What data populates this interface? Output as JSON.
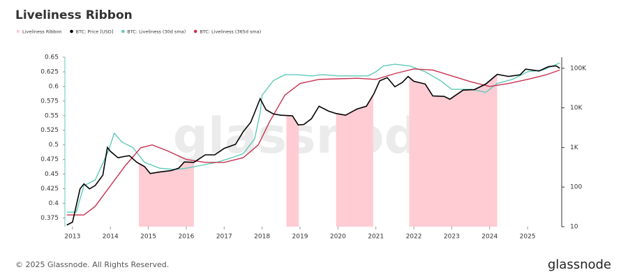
{
  "chart_data": {
    "type": "line",
    "title": "Liveliness Ribbon",
    "watermark": "glassnode",
    "footer": "© 2025 Glassnode. All Rights Reserved.",
    "logo": "glassnode",
    "xlim": [
      2012.8,
      2025.9
    ],
    "xticks": [
      2013,
      2014,
      2015,
      2016,
      2017,
      2018,
      2019,
      2020,
      2021,
      2022,
      2023,
      2024,
      2025
    ],
    "ylim": [
      0.36,
      0.65
    ],
    "yticks": [
      0.375,
      0.4,
      0.425,
      0.45,
      0.475,
      0.5,
      0.525,
      0.55,
      0.575,
      0.6,
      0.625,
      0.65
    ],
    "y2lim": [
      10,
      190000
    ],
    "y2scale": "log",
    "y2ticks": [
      10,
      100,
      {
        "value": 1000,
        "label": "1K"
      },
      {
        "value": 10000,
        "label": "10K"
      },
      {
        "value": 100000,
        "label": "100K"
      }
    ],
    "series": [
      {
        "name": "Liveliness Ribbon",
        "color": "#ffccd4",
        "spans": [
          [
            2014.75,
            2016.2
          ],
          [
            2018.64,
            2018.97
          ],
          [
            2019.95,
            2020.93
          ],
          [
            2021.88,
            2024.2
          ]
        ]
      },
      {
        "name": "BTC: Price [USD]",
        "color": "#000000",
        "axis": "y2",
        "x": [
          2012.85,
          2013.0,
          2013.2,
          2013.3,
          2013.45,
          2013.6,
          2013.8,
          2013.92,
          2014.0,
          2014.2,
          2014.4,
          2014.5,
          2014.7,
          2014.9,
          2015.05,
          2015.3,
          2015.6,
          2015.8,
          2015.95,
          2016.2,
          2016.5,
          2016.75,
          2017.0,
          2017.3,
          2017.5,
          2017.7,
          2017.95,
          2018.1,
          2018.3,
          2018.5,
          2018.8,
          2018.95,
          2019.1,
          2019.3,
          2019.5,
          2019.75,
          2019.95,
          2020.2,
          2020.5,
          2020.75,
          2020.95,
          2021.1,
          2021.3,
          2021.5,
          2021.7,
          2021.85,
          2022.0,
          2022.3,
          2022.5,
          2022.8,
          2022.95,
          2023.3,
          2023.6,
          2023.9,
          2024.2,
          2024.5,
          2024.8,
          2024.95,
          2025.3,
          2025.55,
          2025.75,
          2025.85
        ],
        "values": [
          11,
          13,
          90,
          120,
          90,
          110,
          200,
          1000,
          800,
          550,
          600,
          620,
          420,
          330,
          220,
          240,
          260,
          300,
          430,
          420,
          650,
          650,
          950,
          1200,
          2500,
          4300,
          17000,
          9000,
          7000,
          6500,
          6300,
          3700,
          3800,
          5300,
          11000,
          8300,
          7200,
          6500,
          9300,
          11000,
          23000,
          48000,
          58000,
          34000,
          44000,
          62000,
          47000,
          40000,
          20000,
          19500,
          16500,
          28000,
          29000,
          40000,
          70000,
          62000,
          68000,
          95000,
          85000,
          110000,
          115000,
          100000
        ]
      },
      {
        "name": "BTC: Liveliness (30d sma)",
        "color": "#5fc9b8",
        "x": [
          2012.85,
          2013.1,
          2013.3,
          2013.6,
          2013.95,
          2014.1,
          2014.3,
          2014.6,
          2014.9,
          2015.3,
          2015.7,
          2016.0,
          2016.4,
          2016.8,
          2017.2,
          2017.5,
          2017.8,
          2017.95,
          2018.0,
          2018.3,
          2018.6,
          2018.9,
          2019.3,
          2019.6,
          2020.0,
          2020.4,
          2020.8,
          2021.0,
          2021.2,
          2021.5,
          2021.9,
          2022.3,
          2022.7,
          2023.0,
          2023.5,
          2023.9,
          2024.2,
          2024.6,
          2025.0,
          2025.4,
          2025.85
        ],
        "values": [
          0.385,
          0.385,
          0.43,
          0.44,
          0.49,
          0.52,
          0.505,
          0.495,
          0.47,
          0.46,
          0.458,
          0.46,
          0.465,
          0.47,
          0.478,
          0.485,
          0.51,
          0.555,
          0.585,
          0.61,
          0.62,
          0.62,
          0.618,
          0.62,
          0.618,
          0.618,
          0.618,
          0.625,
          0.635,
          0.638,
          0.635,
          0.625,
          0.61,
          0.595,
          0.595,
          0.59,
          0.605,
          0.612,
          0.625,
          0.628,
          0.64
        ]
      },
      {
        "name": "BTC: Liveliness (365d sma)",
        "color": "#c8314f",
        "x": [
          2012.85,
          2013.3,
          2013.6,
          2014.0,
          2014.4,
          2014.8,
          2015.1,
          2015.5,
          2016.0,
          2016.5,
          2017.0,
          2017.5,
          2017.9,
          2018.2,
          2018.6,
          2019.0,
          2019.5,
          2020.0,
          2020.5,
          2021.0,
          2021.5,
          2022.0,
          2022.5,
          2023.0,
          2023.5,
          2024.0,
          2024.5,
          2025.0,
          2025.5,
          2025.85
        ],
        "values": [
          0.38,
          0.38,
          0.395,
          0.43,
          0.465,
          0.495,
          0.5,
          0.49,
          0.475,
          0.47,
          0.47,
          0.478,
          0.5,
          0.54,
          0.585,
          0.605,
          0.612,
          0.613,
          0.614,
          0.612,
          0.622,
          0.63,
          0.628,
          0.618,
          0.608,
          0.6,
          0.605,
          0.612,
          0.62,
          0.628
        ]
      }
    ]
  }
}
